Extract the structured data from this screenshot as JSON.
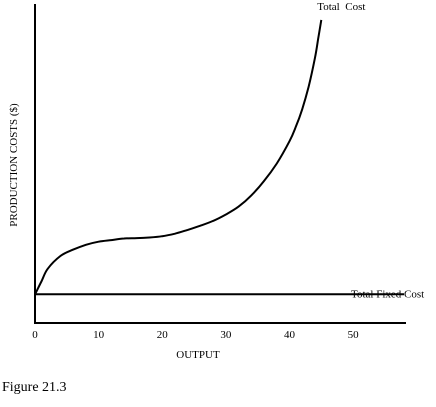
{
  "chart_data": {
    "type": "line",
    "xlabel": "OUTPUT",
    "ylabel": "PRODUCTION COSTS ($)",
    "xlim": [
      0,
      58
    ],
    "ylim": [
      0,
      100
    ],
    "x_ticks": [
      0,
      10,
      20,
      30,
      40,
      50
    ],
    "y_ticks": [],
    "grid": false,
    "series": [
      {
        "name": "Total  Cost",
        "x": [
          0,
          1,
          2,
          4,
          6,
          8,
          10,
          12,
          14,
          16,
          18,
          20,
          22,
          24,
          26,
          28,
          30,
          32,
          34,
          36,
          38,
          40,
          41,
          42,
          43,
          44,
          44.5,
          45
        ],
        "y": [
          9,
          13,
          17,
          21,
          23,
          24.5,
          25.5,
          26,
          26.5,
          26.6,
          26.8,
          27.2,
          28,
          29.2,
          30.5,
          32,
          34,
          36.5,
          40,
          44.5,
          50,
          57,
          61.5,
          67,
          74,
          83,
          89,
          95
        ]
      },
      {
        "name": "Total Fixed Cost",
        "x": [
          0,
          58
        ],
        "y": [
          9,
          9
        ]
      }
    ]
  },
  "caption": "Figure 21.3"
}
